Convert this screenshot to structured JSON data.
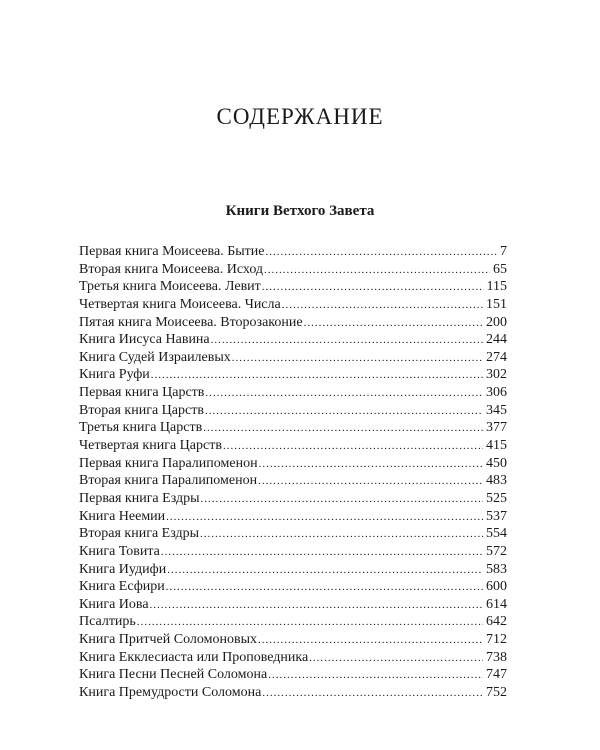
{
  "title": "СОДЕРЖАНИЕ",
  "section": "Книги Ветхого Завета",
  "entries": [
    {
      "name": "Первая книга Моисеева. Бытие",
      "page": "7"
    },
    {
      "name": "Вторая книга Моисеева. Исход",
      "page": "65"
    },
    {
      "name": "Третья книга Моисеева. Левит",
      "page": "115"
    },
    {
      "name": "Четвертая книга Моисеева. Числа",
      "page": "151"
    },
    {
      "name": "Пятая книга Моисеева. Второзаконие",
      "page": "200"
    },
    {
      "name": "Книга Иисуса Навина",
      "page": "244"
    },
    {
      "name": "Книга Судей Израилевых",
      "page": "274"
    },
    {
      "name": "Книга Руфи",
      "page": "302"
    },
    {
      "name": "Первая книга Царств",
      "page": "306"
    },
    {
      "name": "Вторая книга Царств",
      "page": "345"
    },
    {
      "name": "Третья книга Царств",
      "page": "377"
    },
    {
      "name": "Четвертая книга Царств",
      "page": "415"
    },
    {
      "name": "Первая книга Паралипоменон",
      "page": "450"
    },
    {
      "name": "Вторая книга Паралипоменон",
      "page": "483"
    },
    {
      "name": "Первая книга Ездры",
      "page": "525"
    },
    {
      "name": "Книга Неемии",
      "page": "537"
    },
    {
      "name": "Вторая книга Ездры",
      "page": "554"
    },
    {
      "name": "Книга Товита",
      "page": "572"
    },
    {
      "name": "Книга Иудифи",
      "page": "583"
    },
    {
      "name": "Книга Есфири",
      "page": "600"
    },
    {
      "name": "Книга Иова",
      "page": "614"
    },
    {
      "name": "Псалтирь",
      "page": "642"
    },
    {
      "name": "Книга Притчей Соломоновых",
      "page": "712"
    },
    {
      "name": "Книга Екклесиаста или Проповедника",
      "page": "738"
    },
    {
      "name": "Книга Песни Песней Соломона",
      "page": "747"
    },
    {
      "name": "Книга Премудрости Соломона",
      "page": "752"
    }
  ]
}
